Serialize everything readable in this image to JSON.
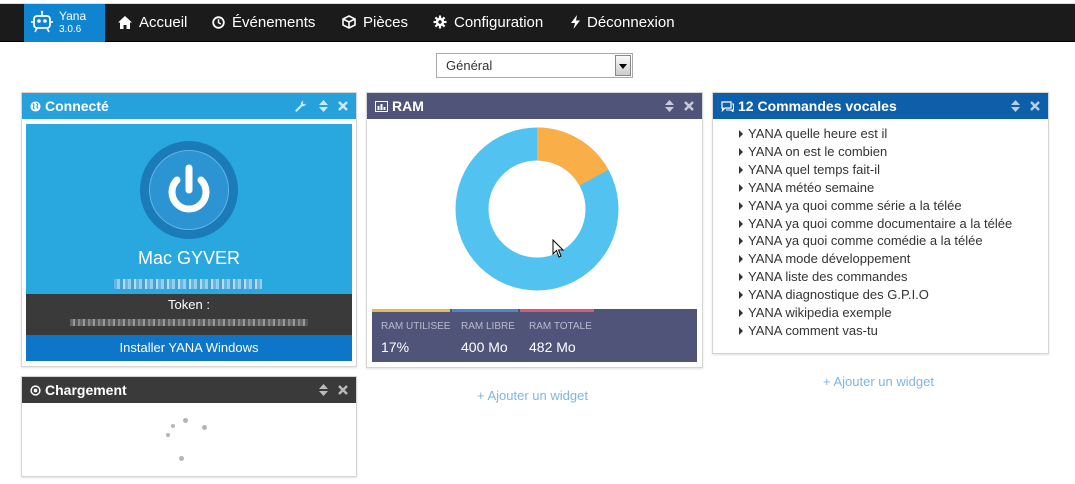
{
  "app": {
    "name": "Yana",
    "version": "3.0.6"
  },
  "nav": {
    "items": [
      {
        "label": "Accueil",
        "icon": "home-icon"
      },
      {
        "label": "Événements",
        "icon": "clock-icon"
      },
      {
        "label": "Pièces",
        "icon": "cube-icon"
      },
      {
        "label": "Configuration",
        "icon": "gear-icon"
      },
      {
        "label": "Déconnexion",
        "icon": "bolt-icon"
      }
    ]
  },
  "dashboard_select": {
    "value": "Général"
  },
  "widgets": {
    "connected": {
      "title": "Connecté",
      "icon": "globe-icon",
      "user_name": "Mac GYVER",
      "token_label": "Token :",
      "install_label": "Installer YANA Windows",
      "color": "#27a1dc"
    },
    "loading": {
      "title": "Chargement",
      "icon": "target-icon",
      "color": "#3a3a3a"
    },
    "ram": {
      "title": "RAM",
      "icon": "bar-chart-icon",
      "color": "#505478",
      "chart": {
        "used_color": "#f9ae48",
        "free_color": "#52c3f1"
      },
      "stats": [
        {
          "label": "RAM UTILISEE",
          "value": "17%",
          "color": "#e7b84c"
        },
        {
          "label": "RAM LIBRE",
          "value": "400 Mo",
          "color": "#4e86c8"
        },
        {
          "label": "RAM TOTALE",
          "value": "482 Mo",
          "color": "#d65a7a"
        }
      ]
    },
    "voice": {
      "title": "12 Commandes vocales",
      "icon": "comments-icon",
      "color": "#0d5fa9",
      "commands": [
        "YANA quelle heure est il",
        "YANA on est le combien",
        "YANA quel temps fait-il",
        "YANA météo semaine",
        "YANA ya quoi comme série a la télée",
        "YANA ya quoi comme documentaire a la télée",
        "YANA ya quoi comme comédie a la télée",
        "YANA mode développement",
        "YANA liste des commandes",
        "YANA diagnostique des G.P.I.O",
        "YANA wikipedia exemple",
        "YANA comment vas-tu"
      ]
    }
  },
  "add_widget_label": "+ Ajouter un widget"
}
